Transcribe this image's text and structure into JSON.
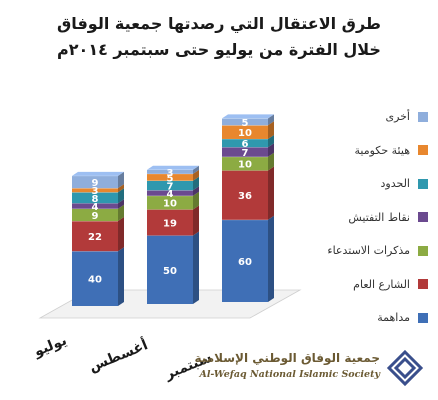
{
  "title": {
    "line1": "طرق الاعتقال التي رصدتها جمعية الوفاق",
    "line2": "خلال  الفترة من يوليو حتى سبتمبر ٢٠١٤م"
  },
  "chart_data": {
    "type": "bar",
    "stacked": true,
    "categories": [
      "يوليو",
      "أغسطس",
      "سبتمبر"
    ],
    "series": [
      {
        "name": "مداهمة",
        "color": "#3f6fb6",
        "values": [
          40,
          50,
          60
        ]
      },
      {
        "name": "الشارع العام",
        "color": "#b23a3a",
        "values": [
          22,
          19,
          36
        ]
      },
      {
        "name": "مذكرات الاستدعاء",
        "color": "#8cab43",
        "values": [
          9,
          10,
          10
        ]
      },
      {
        "name": "نقاط التفتيش",
        "color": "#6b4a8f",
        "values": [
          4,
          4,
          7
        ]
      },
      {
        "name": "الحدود",
        "color": "#2f98ae",
        "values": [
          8,
          7,
          6
        ]
      },
      {
        "name": "هيئة حكومية",
        "color": "#e8872e",
        "values": [
          3,
          5,
          10
        ]
      },
      {
        "name": "أخرى",
        "color": "#8faedc",
        "values": [
          9,
          3,
          5
        ]
      }
    ],
    "legend_position": "right"
  },
  "logo": {
    "arabic": "جمعية الوفاق الوطني الإسلامية",
    "english": "Al-Wefaq National Islamic Society"
  }
}
